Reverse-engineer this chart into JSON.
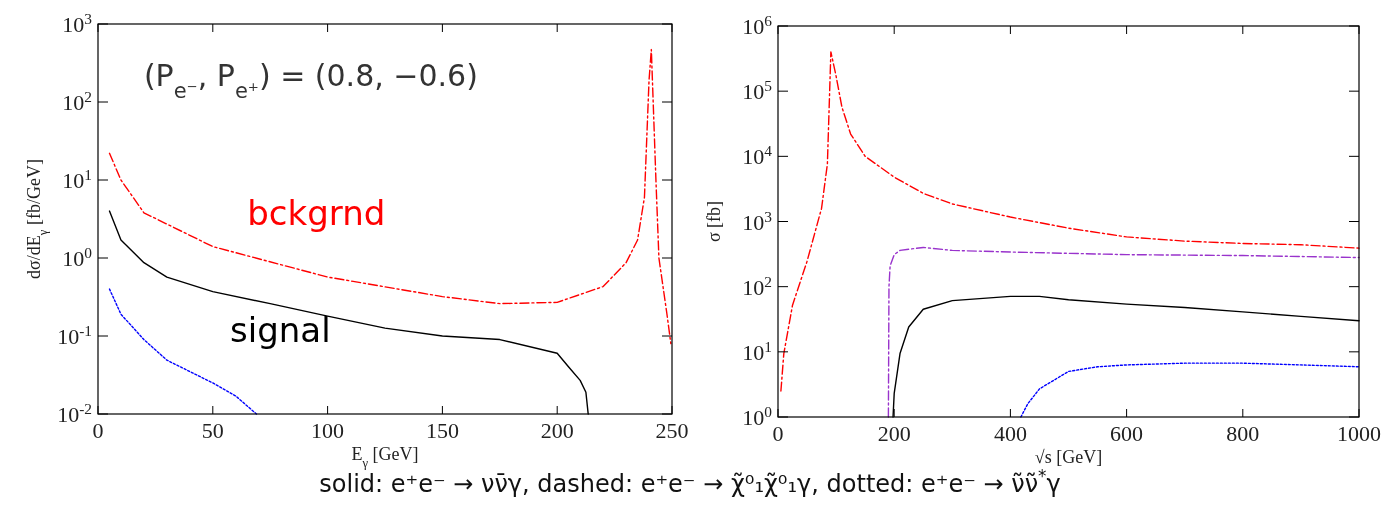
{
  "chart_data": [
    {
      "type": "line",
      "xlabel": "E$_{γ}$ [GeV]",
      "ylabel": "dσ/dE$_{γ}$  [fb/GeV]",
      "log": "y",
      "xlim": [
        0,
        250
      ],
      "ylim": [
        0.01,
        1000
      ],
      "xticks": [
        0,
        50,
        100,
        150,
        200,
        250
      ],
      "yticks": [
        {
          "value": 0.01,
          "label": "10$^{-2}$"
        },
        {
          "value": 0.1,
          "label": "10$^{-1}$"
        },
        {
          "value": 1,
          "label": "10$^{0}$"
        },
        {
          "value": 10,
          "label": "10$^{1}$"
        },
        {
          "value": 100,
          "label": "10$^{2}$"
        },
        {
          "value": 1000,
          "label": "10$^{3}$"
        }
      ],
      "grid": false,
      "annotations": [
        "(P$_{e⁻}$, P$_{e⁺}$) = (0.8, −0.6)",
        "solid: e⁺e⁻ → νν̄γ, dashed: e⁺e⁻ → χ̃⁰₁χ̃⁰₁γ, dotted: e⁺e⁻ → ν̃ν̃$^{*}$γ"
      ],
      "series": [
        {
          "name": "bckgrnd",
          "color": "#ff0000",
          "line_style": "dashed",
          "x": [
            5,
            10,
            20,
            50,
            100,
            150,
            175,
            200,
            220,
            230,
            235,
            238,
            240,
            241,
            243,
            244.3,
            247.7,
            249.5
          ],
          "values": [
            22,
            10,
            3.8,
            1.4,
            0.57,
            0.32,
            0.26,
            0.27,
            0.43,
            0.87,
            1.7,
            6,
            190,
            470,
            10,
            1.0,
            0.2,
            0.08
          ]
        },
        {
          "name": "signal",
          "color": "#000000",
          "line_style": "solid",
          "x": [
            5,
            10,
            20,
            30,
            50,
            75,
            100,
            125,
            150,
            175,
            200,
            205,
            210,
            212.5,
            213.5
          ],
          "values": [
            4,
            1.7,
            0.87,
            0.57,
            0.37,
            0.26,
            0.18,
            0.126,
            0.1,
            0.09,
            0.06,
            0.04,
            0.027,
            0.019,
            0.01
          ]
        },
        {
          "color": "#0000ff",
          "line_style": "dotted",
          "x": [
            5,
            10,
            20,
            30,
            50,
            60,
            69
          ],
          "values": [
            0.4,
            0.19,
            0.09,
            0.049,
            0.025,
            0.017,
            0.01
          ]
        }
      ]
    },
    {
      "type": "line",
      "xlabel": "√s  [GeV]",
      "ylabel": "σ [fb]",
      "log": "y",
      "xlim": [
        0,
        1000
      ],
      "ylim": [
        1,
        1000000
      ],
      "xticks": [
        0,
        200,
        400,
        600,
        800,
        1000
      ],
      "yticks": [
        {
          "value": 1,
          "label": "10$^{0}$"
        },
        {
          "value": 10,
          "label": "10$^{1}$"
        },
        {
          "value": 100,
          "label": "10$^{2}$"
        },
        {
          "value": 1000,
          "label": "10$^{3}$"
        },
        {
          "value": 10000,
          "label": "10$^{4}$"
        },
        {
          "value": 100000,
          "label": "10$^{5}$"
        },
        {
          "value": 1000000,
          "label": "10$^{6}$"
        }
      ],
      "grid": false,
      "series": [
        {
          "color": "#ff0000",
          "line_style": "dashed",
          "x": [
            5,
            10,
            25,
            50,
            75,
            85,
            91,
            100,
            110,
            125,
            150,
            200,
            250,
            300,
            400,
            500,
            600,
            700,
            800,
            900,
            1000
          ],
          "values": [
            2.5,
            9.4,
            52,
            245,
            1600,
            7600,
            400000,
            170000,
            57000,
            22000,
            10000,
            4800,
            2700,
            1860,
            1170,
            790,
            580,
            500,
            460,
            440,
            390
          ]
        },
        {
          "color": "#9933cc",
          "line_style": "dashed",
          "x": [
            190,
            191,
            193,
            200,
            210,
            250,
            300,
            400,
            600,
            800,
            1000
          ],
          "values": [
            1,
            100,
            210,
            310,
            360,
            400,
            360,
            340,
            310,
            300,
            280
          ]
        },
        {
          "color": "#000000",
          "line_style": "solid",
          "x": [
            198,
            200,
            210,
            225,
            250,
            300,
            400,
            450,
            500,
            600,
            700,
            800,
            900,
            1000
          ],
          "values": [
            1,
            2.3,
            9.4,
            24,
            45,
            61,
            71,
            71,
            63,
            54,
            48,
            41,
            35,
            30
          ]
        },
        {
          "color": "#0000ff",
          "line_style": "dotted",
          "x": [
            418,
            430,
            450,
            500,
            550,
            600,
            700,
            800,
            900,
            1000
          ],
          "values": [
            1,
            1.6,
            2.7,
            5,
            5.9,
            6.3,
            6.7,
            6.7,
            6.3,
            5.9
          ]
        }
      ]
    }
  ]
}
